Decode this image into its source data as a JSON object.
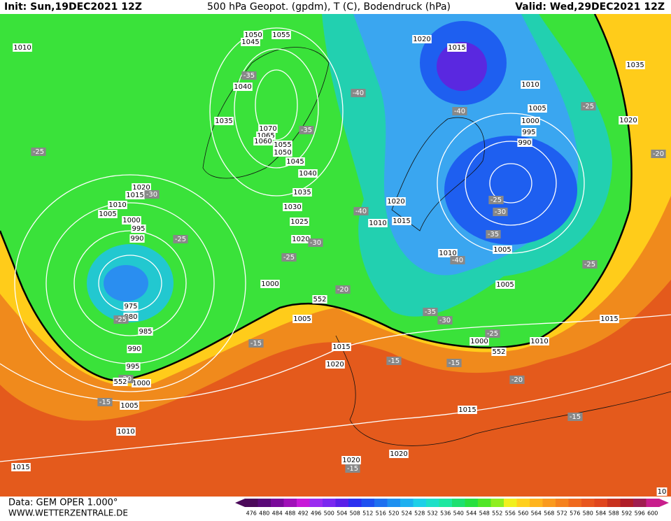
{
  "header": {
    "init": "Init: Sun,19DEC2021 12Z",
    "title": "500 hPa Geopot. (gpdm), T (C), Bodendruck (hPa)",
    "valid": "Valid: Wed,29DEC2021 12Z"
  },
  "footer": {
    "data": "Data: GEM OPER 1.000°",
    "site": "WWW.WETTERZENTRALE.DE"
  },
  "legend": {
    "values": [
      476,
      480,
      484,
      488,
      492,
      496,
      500,
      504,
      508,
      512,
      516,
      520,
      524,
      528,
      532,
      536,
      540,
      544,
      548,
      552,
      556,
      560,
      564,
      568,
      572,
      576,
      580,
      584,
      588,
      592,
      596,
      600
    ],
    "colors": [
      "#4b0a5a",
      "#5a0a78",
      "#7a0a9a",
      "#a010b8",
      "#c818d8",
      "#9a2cf0",
      "#7a28f0",
      "#5a20e8",
      "#2a30f0",
      "#1e50f0",
      "#1e70f0",
      "#1e90f0",
      "#1eb0f0",
      "#1ed0e8",
      "#1ee0c8",
      "#1ee8a0",
      "#1ee070",
      "#28e040",
      "#50e628",
      "#90ee20",
      "#f0f01e",
      "#ffd01e",
      "#ffb41e",
      "#fa9a1e",
      "#f5821e",
      "#f06a1e",
      "#e8561e",
      "#e0461e",
      "#c8321e",
      "#b01e28",
      "#a01e50",
      "#c81e8c"
    ]
  },
  "isobar_labels": [
    "1010",
    "1050",
    "1055",
    "1045",
    "1020",
    "1015",
    "1010",
    "1005",
    "1000",
    "995",
    "990",
    "1035",
    "1020",
    "1040",
    "1035",
    "1070",
    "1065",
    "1060",
    "1055",
    "1050",
    "1045",
    "1040",
    "1035",
    "1030",
    "1025",
    "1020",
    "1020",
    "1015",
    "1010",
    "1005",
    "1000",
    "995",
    "990",
    "1020",
    "1010",
    "1015",
    "1010",
    "1005",
    "1005",
    "1000",
    "1005",
    "975",
    "980",
    "985",
    "990",
    "995",
    "1000",
    "1005",
    "1010",
    "1015",
    "1015",
    "1020",
    "1000",
    "1010",
    "1015",
    "1015",
    "1020",
    "1020",
    "10"
  ],
  "temp_labels": [
    "-35",
    "-40",
    "-40",
    "-25",
    "-35",
    "-25",
    "-30",
    "-20",
    "-25",
    "-30",
    "-25",
    "-40",
    "-25",
    "-30",
    "-35",
    "-40",
    "-25",
    "-20",
    "-35",
    "-30",
    "-25",
    "-25",
    "-15",
    "-15",
    "-15",
    "-20",
    "-20",
    "-15",
    "-15",
    "-15"
  ],
  "contour_labels": [
    "552",
    "552",
    "552"
  ]
}
